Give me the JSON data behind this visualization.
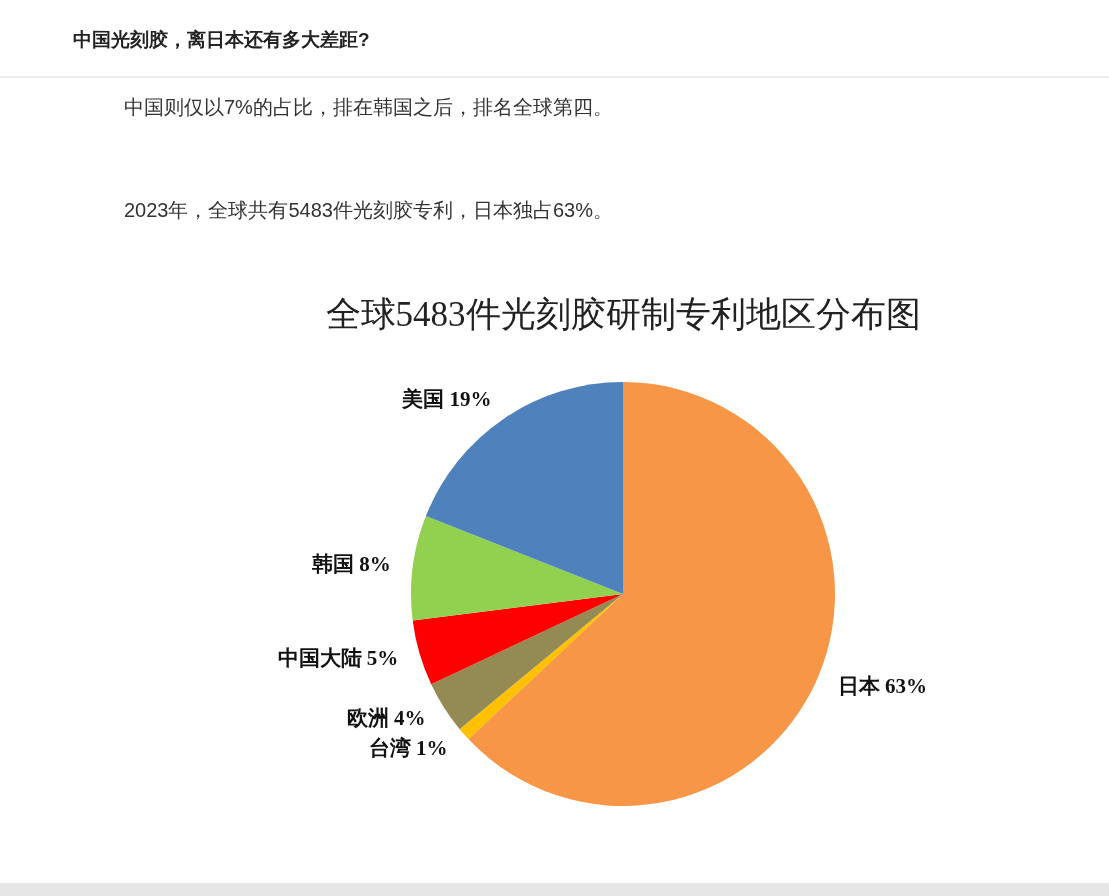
{
  "chart_data": {
    "type": "pie",
    "title": "全球5483件光刻胶研制专利地区分布图",
    "annotations": [
      "中国光刻胶，离日本还有多大差距?",
      "中国则仅以7%的占比，排在韩国之后，排名全球第四。",
      "2023年，全球共有5483件光刻胶专利，日本独占63%。"
    ],
    "categories": [
      "日本",
      "台湾",
      "欧洲",
      "中国大陆",
      "韩国",
      "美国"
    ],
    "values": [
      63,
      1,
      4,
      5,
      8,
      19
    ],
    "value_labels": [
      "63%",
      "1%",
      "4%",
      "5%",
      "8%",
      "19%"
    ],
    "colors": [
      "#f79646",
      "#ffc000",
      "#948a54",
      "#ff0000",
      "#92d050",
      "#4f81bd"
    ],
    "legend": false
  }
}
